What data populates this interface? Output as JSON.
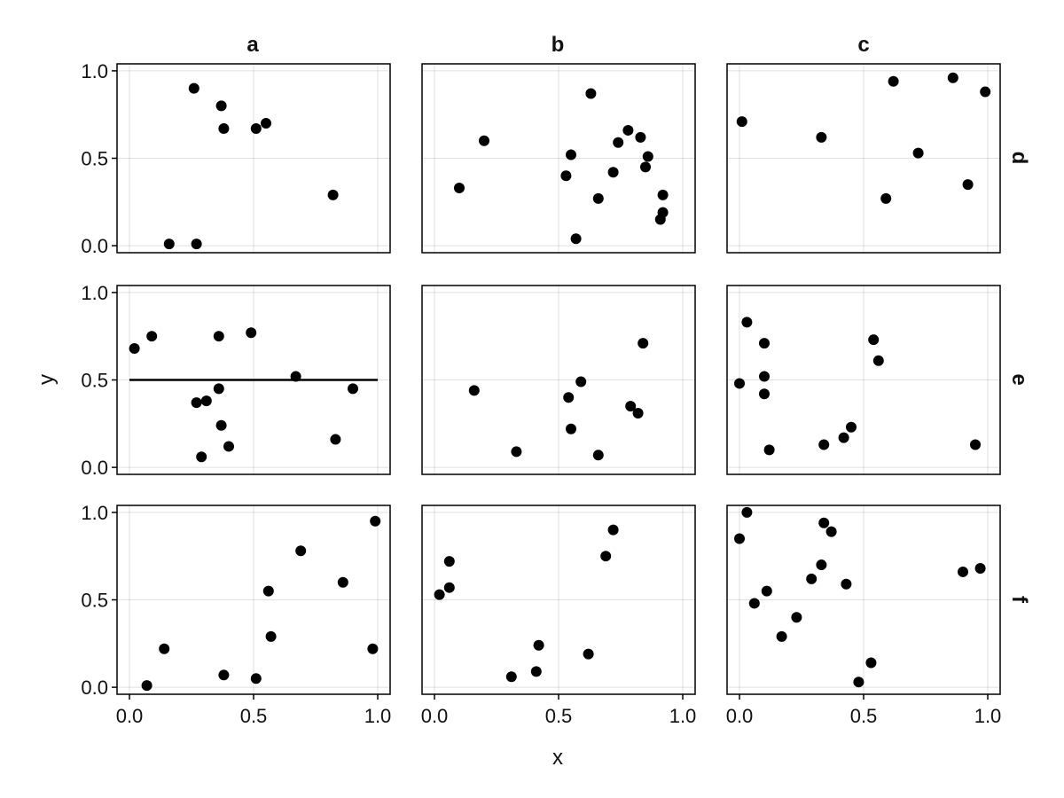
{
  "chart_data": {
    "type": "scatter",
    "layout": "facet-grid",
    "xlabel": "x",
    "ylabel": "y",
    "xlim": [
      -0.05,
      1.05
    ],
    "ylim": [
      -0.04,
      1.04
    ],
    "xticks": [
      0.0,
      0.5,
      1.0
    ],
    "xtick_labels": [
      "0.0",
      "0.5",
      "1.0"
    ],
    "yticks": [
      0.0,
      0.5,
      1.0
    ],
    "ytick_labels": [
      "0.0",
      "0.5",
      "1.0"
    ],
    "grid": true,
    "col_titles": [
      "a",
      "b",
      "c"
    ],
    "row_titles": [
      "d",
      "e",
      "f"
    ],
    "marker_color": "#000000",
    "panels": [
      {
        "row": 0,
        "col": 0,
        "points": [
          [
            0.16,
            0.01
          ],
          [
            0.27,
            0.01
          ],
          [
            0.26,
            0.9
          ],
          [
            0.37,
            0.8
          ],
          [
            0.38,
            0.67
          ],
          [
            0.51,
            0.67
          ],
          [
            0.55,
            0.7
          ],
          [
            0.82,
            0.29
          ]
        ]
      },
      {
        "row": 0,
        "col": 1,
        "points": [
          [
            0.1,
            0.33
          ],
          [
            0.2,
            0.6
          ],
          [
            0.53,
            0.4
          ],
          [
            0.55,
            0.52
          ],
          [
            0.57,
            0.04
          ],
          [
            0.63,
            0.87
          ],
          [
            0.66,
            0.27
          ],
          [
            0.72,
            0.42
          ],
          [
            0.74,
            0.59
          ],
          [
            0.78,
            0.66
          ],
          [
            0.83,
            0.62
          ],
          [
            0.85,
            0.45
          ],
          [
            0.86,
            0.51
          ],
          [
            0.91,
            0.15
          ],
          [
            0.92,
            0.19
          ],
          [
            0.92,
            0.29
          ]
        ]
      },
      {
        "row": 0,
        "col": 2,
        "points": [
          [
            0.01,
            0.71
          ],
          [
            0.33,
            0.62
          ],
          [
            0.59,
            0.27
          ],
          [
            0.62,
            0.94
          ],
          [
            0.72,
            0.53
          ],
          [
            0.86,
            0.96
          ],
          [
            0.92,
            0.35
          ],
          [
            0.99,
            0.88
          ]
        ]
      },
      {
        "row": 1,
        "col": 0,
        "points": [
          [
            0.02,
            0.68
          ],
          [
            0.09,
            0.75
          ],
          [
            0.27,
            0.37
          ],
          [
            0.29,
            0.06
          ],
          [
            0.31,
            0.38
          ],
          [
            0.36,
            0.75
          ],
          [
            0.36,
            0.45
          ],
          [
            0.37,
            0.24
          ],
          [
            0.4,
            0.12
          ],
          [
            0.49,
            0.77
          ],
          [
            0.67,
            0.52
          ],
          [
            0.83,
            0.16
          ],
          [
            0.9,
            0.45
          ]
        ]
      },
      {
        "row": 1,
        "col": 1,
        "points": [
          [
            0.16,
            0.44
          ],
          [
            0.33,
            0.09
          ],
          [
            0.54,
            0.4
          ],
          [
            0.55,
            0.22
          ],
          [
            0.59,
            0.49
          ],
          [
            0.66,
            0.07
          ],
          [
            0.79,
            0.35
          ],
          [
            0.82,
            0.31
          ],
          [
            0.84,
            0.71
          ]
        ]
      },
      {
        "row": 1,
        "col": 2,
        "points": [
          [
            0.0,
            0.48
          ],
          [
            0.03,
            0.83
          ],
          [
            0.1,
            0.71
          ],
          [
            0.1,
            0.52
          ],
          [
            0.1,
            0.42
          ],
          [
            0.12,
            0.1
          ],
          [
            0.34,
            0.13
          ],
          [
            0.42,
            0.17
          ],
          [
            0.45,
            0.23
          ],
          [
            0.54,
            0.73
          ],
          [
            0.56,
            0.61
          ],
          [
            0.95,
            0.13
          ]
        ]
      },
      {
        "row": 2,
        "col": 0,
        "points": [
          [
            0.07,
            0.01
          ],
          [
            0.14,
            0.22
          ],
          [
            0.38,
            0.07
          ],
          [
            0.51,
            0.05
          ],
          [
            0.56,
            0.55
          ],
          [
            0.57,
            0.29
          ],
          [
            0.69,
            0.78
          ],
          [
            0.86,
            0.6
          ],
          [
            0.98,
            0.22
          ],
          [
            0.99,
            0.95
          ]
        ]
      },
      {
        "row": 2,
        "col": 1,
        "points": [
          [
            0.02,
            0.53
          ],
          [
            0.06,
            0.72
          ],
          [
            0.06,
            0.57
          ],
          [
            0.31,
            0.06
          ],
          [
            0.41,
            0.09
          ],
          [
            0.42,
            0.24
          ],
          [
            0.62,
            0.19
          ],
          [
            0.69,
            0.75
          ],
          [
            0.72,
            0.9
          ]
        ]
      },
      {
        "row": 2,
        "col": 2,
        "points": [
          [
            0.0,
            0.85
          ],
          [
            0.03,
            1.0
          ],
          [
            0.06,
            0.48
          ],
          [
            0.11,
            0.55
          ],
          [
            0.17,
            0.29
          ],
          [
            0.23,
            0.4
          ],
          [
            0.29,
            0.62
          ],
          [
            0.33,
            0.7
          ],
          [
            0.34,
            0.94
          ],
          [
            0.37,
            0.89
          ],
          [
            0.43,
            0.59
          ],
          [
            0.48,
            0.03
          ],
          [
            0.53,
            0.14
          ],
          [
            0.9,
            0.66
          ],
          [
            0.97,
            0.68
          ]
        ]
      }
    ],
    "reference_lines": [
      {
        "row": 1,
        "col": 0,
        "type": "horizontal",
        "y": 0.5,
        "x_from": 0.0,
        "x_to": 1.0,
        "color": "#000000"
      }
    ]
  }
}
